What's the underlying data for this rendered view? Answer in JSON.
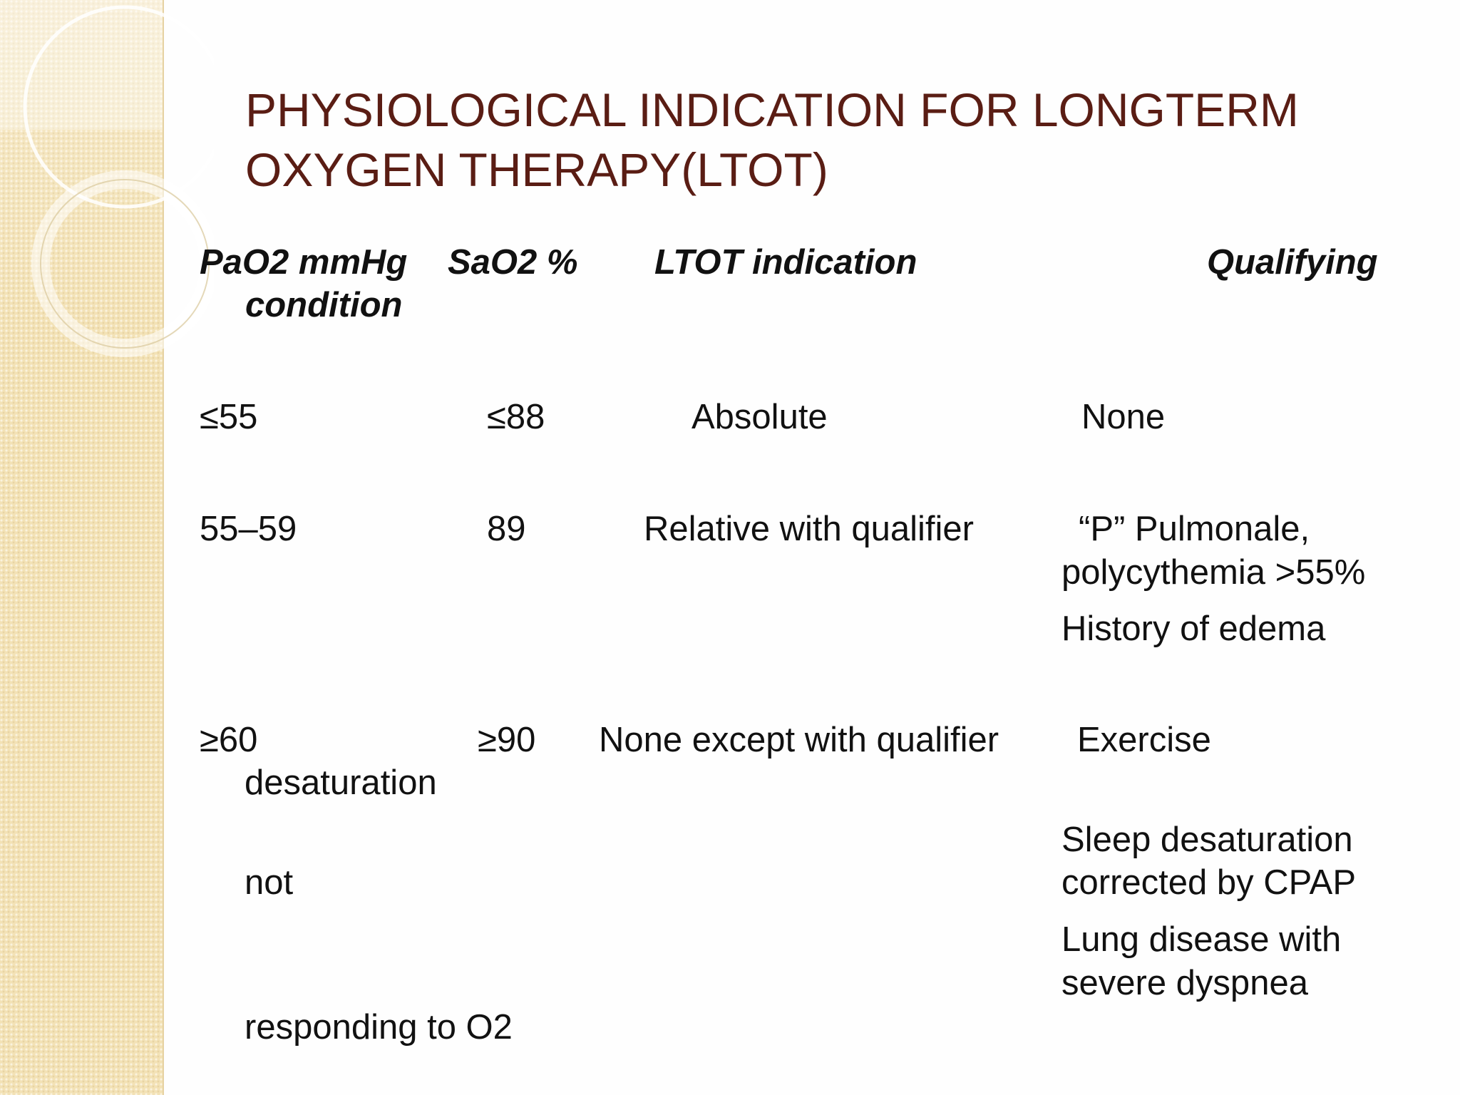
{
  "slide": {
    "title_line1": "PHYSIOLOGICAL INDICATION FOR LONGTERM",
    "title_line2": "OXYGEN THERAPY(LTOT)"
  },
  "headers": {
    "pao2": "PaO2 mmHg",
    "sao2": "SaO2 %",
    "ltot": "LTOT indication",
    "qualifying": "Qualifying",
    "condition": "condition"
  },
  "rows": [
    {
      "pao2": "≤55",
      "sao2": "≤88",
      "ltot": "Absolute",
      "qualifying": [
        "None"
      ]
    },
    {
      "pao2": "55–59",
      "sao2": "89",
      "ltot": "Relative with qualifier",
      "qualifying": [
        "“P” Pulmonale,",
        "polycythemia >55%",
        "History of edema"
      ]
    },
    {
      "pao2": "≥60",
      "sao2": "≥90",
      "ltot": "None except with qualifier",
      "qualifying": [
        "Exercise",
        "desaturation",
        "Sleep desaturation",
        "not",
        "corrected by CPAP",
        "Lung disease with",
        "severe dyspnea",
        "responding to O2"
      ]
    }
  ],
  "colors": {
    "title": "#5a1d14",
    "band": "#f3e2b6",
    "text": "#111111"
  }
}
